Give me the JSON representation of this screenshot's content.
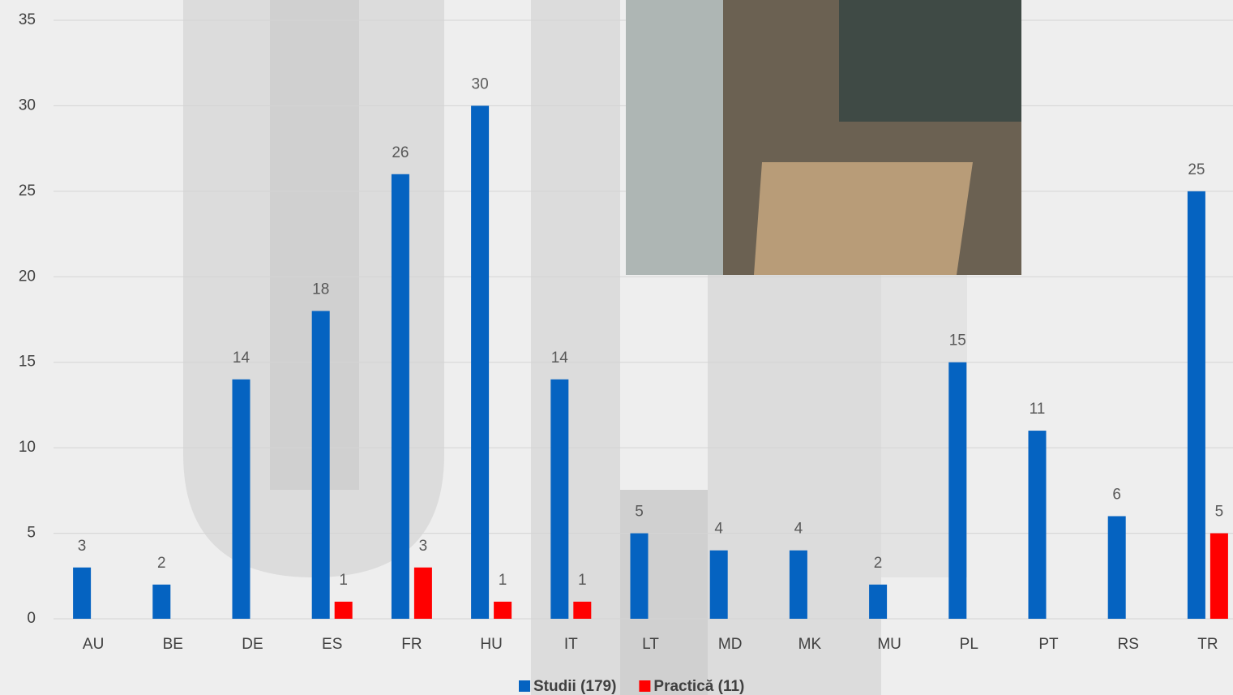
{
  "chart_data": {
    "type": "bar",
    "categories": [
      "AU",
      "BE",
      "DE",
      "ES",
      "FR",
      "HU",
      "IT",
      "LT",
      "MD",
      "MK",
      "MU",
      "PL",
      "PT",
      "RS",
      "TR"
    ],
    "series": [
      {
        "name": "Studii (179)",
        "color": "#0563c1",
        "values": [
          3,
          2,
          14,
          18,
          26,
          30,
          14,
          5,
          4,
          4,
          2,
          15,
          11,
          6,
          25
        ]
      },
      {
        "name": "Practică (11)",
        "color": "#ff0000",
        "values": [
          null,
          null,
          null,
          1,
          3,
          1,
          1,
          null,
          null,
          null,
          null,
          null,
          null,
          null,
          5
        ]
      }
    ],
    "ylim": [
      0,
      35
    ],
    "yticks": [
      0,
      5,
      10,
      15,
      20,
      25,
      30,
      35
    ],
    "grid": true,
    "legend": "bottom"
  }
}
